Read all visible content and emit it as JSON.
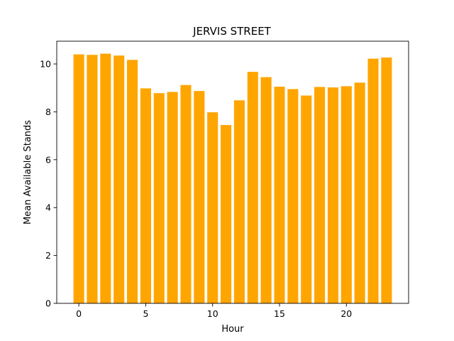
{
  "chart_data": {
    "type": "bar",
    "title": "JERVIS STREET",
    "xlabel": "Hour",
    "ylabel": "Mean Available Stands",
    "bar_color": "#ffa500",
    "x": [
      0,
      1,
      2,
      3,
      4,
      5,
      6,
      7,
      8,
      9,
      10,
      11,
      12,
      13,
      14,
      15,
      16,
      17,
      18,
      19,
      20,
      21,
      22,
      23
    ],
    "values": [
      10.4,
      10.38,
      10.43,
      10.35,
      10.17,
      8.98,
      8.78,
      8.83,
      9.12,
      8.87,
      7.98,
      7.45,
      8.48,
      9.67,
      9.45,
      9.05,
      8.95,
      8.68,
      9.04,
      9.02,
      9.07,
      9.22,
      10.22,
      10.27
    ],
    "xlim": [
      -1.65,
      24.65
    ],
    "ylim": [
      0,
      10.95
    ],
    "xticks": [
      0,
      5,
      10,
      15,
      20
    ],
    "yticks": [
      0,
      2,
      4,
      6,
      8,
      10
    ],
    "grid": false
  }
}
